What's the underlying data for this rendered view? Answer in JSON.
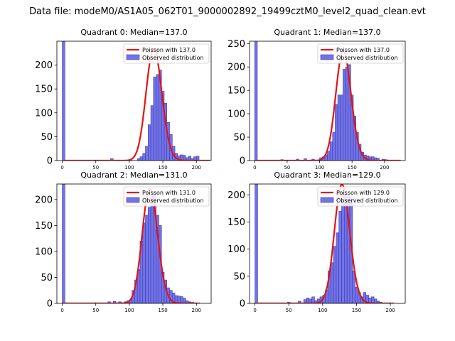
{
  "figure": {
    "suptitle": "Data file: modeM0/AS1A05_062T01_9000002892_19499cztM0_level2_quad_clean.evt"
  },
  "colors": {
    "poisson_line": "#e41414",
    "hist_fill": "#7373e8",
    "hist_edge": "#3a3ab0",
    "axes": "#000000"
  },
  "chart_data": [
    {
      "type": "bar",
      "title": "Quadrant 0: Median=137.0",
      "xlim": [
        -8,
        222
      ],
      "ylim": [
        0,
        250
      ],
      "xticks": [
        0,
        50,
        100,
        150,
        200
      ],
      "yticks": [
        0,
        50,
        100,
        150,
        200
      ],
      "bin_width": 4,
      "histogram": {
        "name": "Observed distribution",
        "bins": [
          [
            0,
            250
          ],
          [
            72,
            4
          ],
          [
            100,
            1
          ],
          [
            112,
            4
          ],
          [
            116,
            8
          ],
          [
            120,
            15
          ],
          [
            124,
            30
          ],
          [
            128,
            75
          ],
          [
            132,
            115
          ],
          [
            136,
            175
          ],
          [
            140,
            180
          ],
          [
            144,
            190
          ],
          [
            148,
            145
          ],
          [
            152,
            120
          ],
          [
            156,
            80
          ],
          [
            160,
            55
          ],
          [
            164,
            30
          ],
          [
            168,
            15
          ],
          [
            172,
            10
          ],
          [
            176,
            12
          ],
          [
            180,
            11
          ],
          [
            184,
            6
          ],
          [
            188,
            9
          ],
          [
            192,
            4
          ],
          [
            196,
            8
          ],
          [
            200,
            9
          ]
        ]
      },
      "poisson": {
        "name": "Poisson with 137.0",
        "mu": 137.0,
        "peak": 235,
        "x_range": [
          0,
          220
        ]
      }
    },
    {
      "type": "bar",
      "title": "Quadrant 1: Median=137.0",
      "xlim": [
        -8,
        232
      ],
      "ylim": [
        0,
        255
      ],
      "xticks": [
        0,
        50,
        100,
        150,
        200
      ],
      "yticks": [
        0,
        50,
        100,
        150,
        200,
        250
      ],
      "bin_width": 4,
      "histogram": {
        "name": "Observed distribution",
        "bins": [
          [
            0,
            255
          ],
          [
            40,
            2
          ],
          [
            64,
            3
          ],
          [
            76,
            4
          ],
          [
            88,
            3
          ],
          [
            100,
            6
          ],
          [
            104,
            8
          ],
          [
            108,
            12
          ],
          [
            112,
            20
          ],
          [
            116,
            40
          ],
          [
            120,
            60
          ],
          [
            124,
            120
          ],
          [
            128,
            140
          ],
          [
            132,
            140
          ],
          [
            136,
            195
          ],
          [
            140,
            200
          ],
          [
            144,
            205
          ],
          [
            148,
            140
          ],
          [
            152,
            95
          ],
          [
            156,
            60
          ],
          [
            160,
            35
          ],
          [
            164,
            18
          ],
          [
            168,
            12
          ],
          [
            172,
            10
          ],
          [
            176,
            8
          ],
          [
            180,
            8
          ],
          [
            184,
            6
          ],
          [
            188,
            5
          ],
          [
            196,
            3
          ],
          [
            200,
            2
          ]
        ]
      },
      "poisson": {
        "name": "Poisson with 137.0",
        "mu": 137.0,
        "peak": 235,
        "x_range": [
          0,
          225
        ]
      }
    },
    {
      "type": "bar",
      "title": "Quadrant 2: Median=131.0",
      "xlim": [
        -8,
        222
      ],
      "ylim": [
        0,
        230
      ],
      "xticks": [
        0,
        50,
        100,
        150,
        200
      ],
      "yticks": [
        0,
        50,
        100,
        150,
        200
      ],
      "bin_width": 4,
      "histogram": {
        "name": "Observed distribution",
        "bins": [
          [
            0,
            230
          ],
          [
            68,
            3
          ],
          [
            76,
            4
          ],
          [
            84,
            3
          ],
          [
            92,
            3
          ],
          [
            96,
            5
          ],
          [
            100,
            7
          ],
          [
            104,
            25
          ],
          [
            108,
            45
          ],
          [
            112,
            65
          ],
          [
            116,
            120
          ],
          [
            120,
            155
          ],
          [
            124,
            170
          ],
          [
            128,
            185
          ],
          [
            132,
            205
          ],
          [
            136,
            215
          ],
          [
            140,
            170
          ],
          [
            144,
            150
          ],
          [
            148,
            60
          ],
          [
            152,
            45
          ],
          [
            156,
            30
          ],
          [
            160,
            25
          ],
          [
            164,
            20
          ],
          [
            168,
            15
          ],
          [
            172,
            14
          ],
          [
            176,
            13
          ],
          [
            180,
            10
          ],
          [
            184,
            5
          ],
          [
            188,
            3
          ],
          [
            192,
            2
          ],
          [
            196,
            1
          ]
        ]
      },
      "poisson": {
        "name": "Poisson with 131.0",
        "mu": 131.0,
        "peak": 221,
        "x_range": [
          0,
          205
        ]
      }
    },
    {
      "type": "bar",
      "title": "Quadrant 3: Median=129.0",
      "xlim": [
        -8,
        222
      ],
      "ylim": [
        0,
        220
      ],
      "xticks": [
        0,
        50,
        100,
        150,
        200
      ],
      "yticks": [
        0,
        50,
        100,
        150,
        200
      ],
      "bin_width": 4,
      "histogram": {
        "name": "Observed distribution",
        "bins": [
          [
            0,
            220
          ],
          [
            48,
            2
          ],
          [
            64,
            4
          ],
          [
            72,
            7
          ],
          [
            76,
            10
          ],
          [
            80,
            8
          ],
          [
            84,
            12
          ],
          [
            88,
            5
          ],
          [
            92,
            8
          ],
          [
            96,
            12
          ],
          [
            100,
            15
          ],
          [
            104,
            25
          ],
          [
            108,
            60
          ],
          [
            112,
            75
          ],
          [
            116,
            105
          ],
          [
            120,
            130
          ],
          [
            124,
            170
          ],
          [
            128,
            205
          ],
          [
            132,
            190
          ],
          [
            136,
            200
          ],
          [
            140,
            195
          ],
          [
            144,
            60
          ],
          [
            148,
            30
          ],
          [
            152,
            20
          ],
          [
            156,
            12
          ],
          [
            160,
            20
          ],
          [
            164,
            15
          ],
          [
            168,
            10
          ],
          [
            172,
            12
          ],
          [
            176,
            8
          ],
          [
            180,
            4
          ],
          [
            184,
            2
          ]
        ]
      },
      "poisson": {
        "name": "Poisson with 129.0",
        "mu": 129.0,
        "peak": 219,
        "x_range": [
          0,
          205
        ]
      }
    }
  ]
}
